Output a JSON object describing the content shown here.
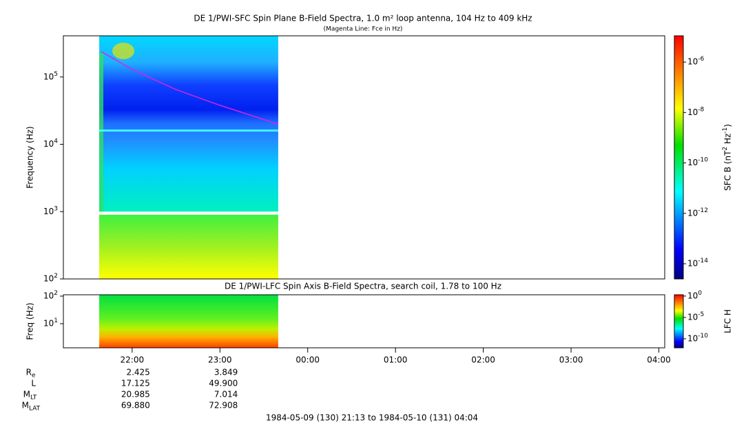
{
  "chart_data": [
    {
      "type": "spectrogram",
      "title": "DE 1/PWI-SFC  Spin Plane B-Field Spectra, 1.0 m² loop antenna, 104 Hz to 409 kHz",
      "subtitle": "(Magenta Line: Fce in Hz)",
      "ylabel": "Frequency (Hz)",
      "yscale": "log",
      "ylim": [
        100,
        409000
      ],
      "yticks": [
        {
          "value": 100,
          "label": "10^2"
        },
        {
          "value": 1000,
          "label": "10^3"
        },
        {
          "value": 10000,
          "label": "10^4"
        },
        {
          "value": 100000,
          "label": "10^5"
        }
      ],
      "xlim": [
        21.2167,
        28.0667
      ],
      "data_span": [
        21.625,
        23.664
      ],
      "series": [
        {
          "color": "#e020e0",
          "x": [
            21.65,
            22.0,
            22.5,
            23.0,
            23.66
          ],
          "values": [
            238000,
            130000,
            65000,
            38000,
            20000
          ]
        }
      ],
      "colorbar": {
        "label": "SFC B (nT^2 Hz^-1)",
        "scale": "log",
        "lim": [
          2.5e-15,
          1.1e-05
        ],
        "ticks": [
          {
            "value": 1e-14,
            "label": "10^-14"
          },
          {
            "value": 1e-12,
            "label": "10^-12"
          },
          {
            "value": 1e-10,
            "label": "10^-10"
          },
          {
            "value": 1e-08,
            "label": "10^-8"
          },
          {
            "value": 1e-06,
            "label": "10^-6"
          }
        ]
      }
    },
    {
      "type": "spectrogram",
      "title": "DE 1/PWI-LFC  Spin Axis B-Field Spectra, search coil, 1.78 to 100 Hz",
      "ylabel": "Freq (Hz)",
      "yscale": "log",
      "ylim": [
        1.33,
        112
      ],
      "yticks": [
        {
          "value": 10,
          "label": "10^1"
        },
        {
          "value": 100,
          "label": "10^2"
        }
      ],
      "xlim": [
        21.2167,
        28.0667
      ],
      "data_span": [
        21.625,
        23.664
      ],
      "xticks": [
        {
          "value": 22,
          "label": "22:00"
        },
        {
          "value": 23,
          "label": "23:00"
        },
        {
          "value": 24,
          "label": "00:00"
        },
        {
          "value": 25,
          "label": "01:00"
        },
        {
          "value": 26,
          "label": "02:00"
        },
        {
          "value": 27,
          "label": "03:00"
        },
        {
          "value": 28,
          "label": "04:00"
        }
      ],
      "colorbar": {
        "label": "LFC H",
        "scale": "log",
        "lim": [
          7.9e-13,
          2
        ],
        "ticks": [
          {
            "value": 1e-10,
            "label": "10^-10"
          },
          {
            "value": 1e-05,
            "label": "10^-5"
          },
          {
            "value": 1,
            "label": "10^0"
          }
        ]
      }
    }
  ],
  "ephemeris": {
    "rows": [
      {
        "label": "R",
        "sub": "e",
        "values": [
          "2.425",
          "3.849"
        ]
      },
      {
        "label": "L",
        "values": [
          "17.125",
          "49.900"
        ]
      },
      {
        "label": "M",
        "sub": "LT",
        "values": [
          "20.985",
          "7.014"
        ]
      },
      {
        "label": "M",
        "sub": "LAT",
        "values": [
          "69.880",
          "72.908"
        ]
      }
    ]
  },
  "footer": "1984-05-09 (130) 21:13 to 1984-05-10 (131) 04:04"
}
